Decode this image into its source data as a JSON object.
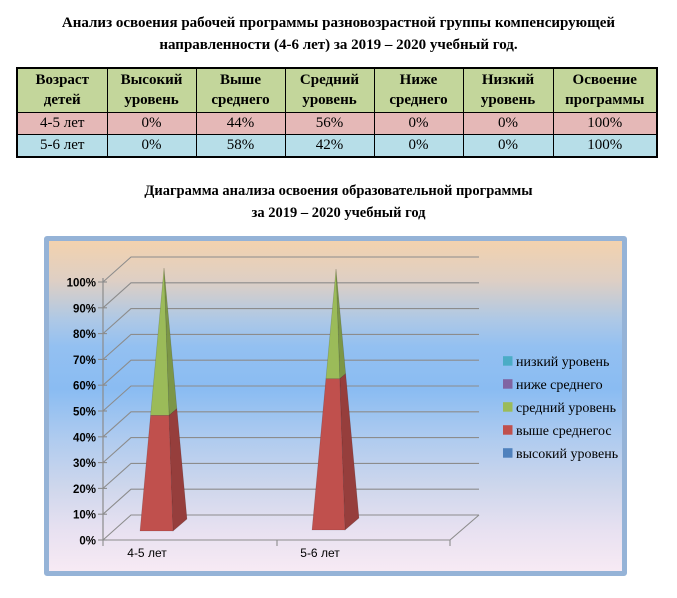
{
  "document": {
    "title_line1": "Анализ освоения рабочей программы разновозрастной группы компенсирующей",
    "title_line2": "направленности (4-6 лет) за 2019 – 2020 учебный год.",
    "chart_title_line1": "Диаграмма анализа освоения образовательной программы",
    "chart_title_line2": "за 2019 – 2020 учебный год"
  },
  "table": {
    "header_bg": "#C3D69B",
    "headers": [
      "Возраст детей",
      "Высокий уровень",
      "Выше среднего",
      "Средний уровень",
      "Ниже среднего",
      "Низкий уровень",
      "Освоение программы"
    ],
    "rows": [
      {
        "bg": "#E5B8B7",
        "cells": [
          "4-5 лет",
          "0%",
          "44%",
          "56%",
          "0%",
          "0%",
          "100%"
        ]
      },
      {
        "bg": "#B7DEE8",
        "cells": [
          "5-6 лет",
          "0%",
          "58%",
          "42%",
          "0%",
          "0%",
          "100%"
        ]
      }
    ]
  },
  "chart_style": {
    "frame_border": "#95B3D7",
    "gridline_color": "#8C8C8C"
  },
  "chart_data": {
    "type": "bar",
    "subtype": "3d-stacked-pyramid",
    "categories": [
      "4-5 лет",
      "5-6 лет"
    ],
    "series": [
      {
        "name": "низкий уровень",
        "color": "#4BACC6",
        "values": [
          0,
          0
        ]
      },
      {
        "name": "ниже среднего",
        "color": "#8064A2",
        "values": [
          0,
          0
        ]
      },
      {
        "name": "средний уровень",
        "color": "#9BBB59",
        "values": [
          56,
          42
        ]
      },
      {
        "name": "выше среднегос",
        "color": "#C0504D",
        "values": [
          44,
          58
        ]
      },
      {
        "name": "высокий уровень",
        "color": "#4F81BD",
        "values": [
          0,
          0
        ]
      }
    ],
    "stack_bottom_series": "выше среднегос",
    "stack_top_series": "средний уровень",
    "yticks": [
      "0%",
      "10%",
      "20%",
      "30%",
      "40%",
      "50%",
      "60%",
      "70%",
      "80%",
      "90%",
      "100%"
    ],
    "ylim": [
      0,
      100
    ],
    "grid": true,
    "legend_position": "right",
    "legend_order": [
      "низкий уровень",
      "ниже среднего",
      "средний уровень",
      "выше среднегос",
      "высокий уровень"
    ]
  }
}
